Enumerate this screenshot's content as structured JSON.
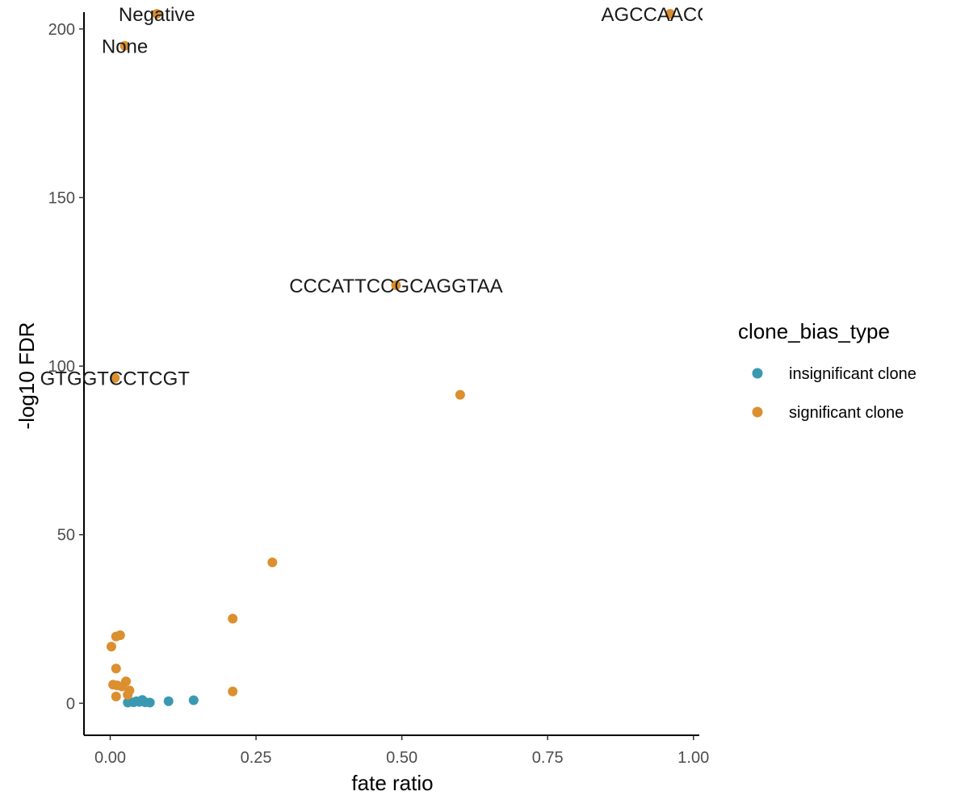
{
  "chart_data": {
    "type": "scatter",
    "title": "",
    "xlabel": "fate ratio",
    "ylabel": "-log10 FDR",
    "xlim": [
      -0.045,
      1.01
    ],
    "ylim": [
      -9.5,
      205
    ],
    "x_ticks": [
      0,
      0.25,
      0.5,
      0.75,
      1
    ],
    "x_tick_labels": [
      "0.00",
      "0.25",
      "0.50",
      "0.75",
      "1.00"
    ],
    "y_ticks": [
      0,
      50,
      100,
      150,
      200
    ],
    "y_tick_labels": [
      "0",
      "50",
      "100",
      "150",
      "200"
    ],
    "grid": false,
    "legend": {
      "title": "clone_bias_type",
      "placement": "right",
      "entries": [
        {
          "label": "insignificant clone",
          "color": "#3A99B0"
        },
        {
          "label": "significant clone",
          "color": "#DC8F2E"
        }
      ]
    },
    "series": [
      {
        "name": "insignificant clone",
        "color": "#3A99B0",
        "points": [
          {
            "x": 0.03,
            "y": 0.2
          },
          {
            "x": 0.04,
            "y": 0.3
          },
          {
            "x": 0.045,
            "y": 0.6
          },
          {
            "x": 0.05,
            "y": 0.4
          },
          {
            "x": 0.055,
            "y": 1.0
          },
          {
            "x": 0.06,
            "y": 0.3
          },
          {
            "x": 0.068,
            "y": 0.2
          },
          {
            "x": 0.1,
            "y": 0.6
          },
          {
            "x": 0.143,
            "y": 0.9
          }
        ]
      },
      {
        "name": "significant clone",
        "color": "#DC8F2E",
        "points": [
          {
            "x": 0.002,
            "y": 16.8
          },
          {
            "x": 0.01,
            "y": 19.8
          },
          {
            "x": 0.017,
            "y": 20.2
          },
          {
            "x": 0.01,
            "y": 10.3
          },
          {
            "x": 0.005,
            "y": 5.5
          },
          {
            "x": 0.012,
            "y": 5.3
          },
          {
            "x": 0.02,
            "y": 5.0
          },
          {
            "x": 0.027,
            "y": 6.5
          },
          {
            "x": 0.033,
            "y": 3.8
          },
          {
            "x": 0.01,
            "y": 2.0
          },
          {
            "x": 0.03,
            "y": 2.5
          },
          {
            "x": 0.21,
            "y": 25.1
          },
          {
            "x": 0.21,
            "y": 3.5
          },
          {
            "x": 0.278,
            "y": 41.8
          },
          {
            "x": 0.6,
            "y": 91.5
          },
          {
            "x": 0.49,
            "y": 124.0
          },
          {
            "x": 0.008,
            "y": 96.5
          },
          {
            "x": 0.025,
            "y": 195.0
          },
          {
            "x": 0.08,
            "y": 204.5
          },
          {
            "x": 0.96,
            "y": 204.5
          }
        ]
      }
    ],
    "annotations": [
      {
        "text": "Negative",
        "x": 0.08,
        "y": 204.5
      },
      {
        "text": "None",
        "x": 0.025,
        "y": 195.0
      },
      {
        "text": "AGCCAACGAC",
        "x": 0.96,
        "y": 204.5
      },
      {
        "text": "CCCATTCCGCAGGTAA",
        "x": 0.49,
        "y": 124.0
      },
      {
        "text": "GTGGTCCTCGT",
        "x": 0.008,
        "y": 96.5
      }
    ]
  }
}
